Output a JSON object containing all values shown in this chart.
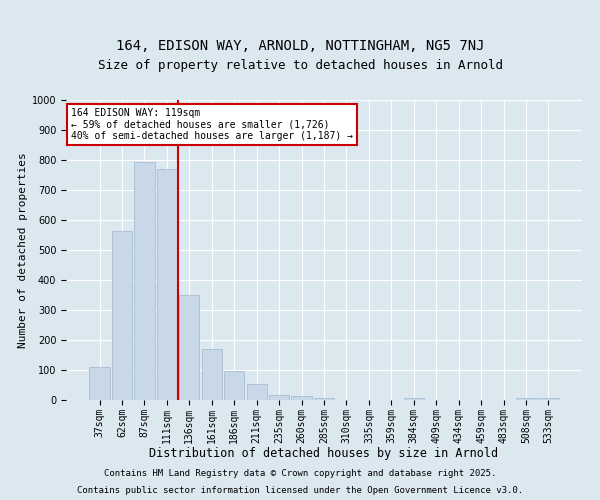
{
  "title_line1": "164, EDISON WAY, ARNOLD, NOTTINGHAM, NG5 7NJ",
  "title_line2": "Size of property relative to detached houses in Arnold",
  "xlabel": "Distribution of detached houses by size in Arnold",
  "ylabel": "Number of detached properties",
  "categories": [
    "37sqm",
    "62sqm",
    "87sqm",
    "111sqm",
    "136sqm",
    "161sqm",
    "186sqm",
    "211sqm",
    "235sqm",
    "260sqm",
    "285sqm",
    "310sqm",
    "335sqm",
    "359sqm",
    "384sqm",
    "409sqm",
    "434sqm",
    "459sqm",
    "483sqm",
    "508sqm",
    "533sqm"
  ],
  "values": [
    110,
    565,
    795,
    770,
    350,
    170,
    97,
    55,
    18,
    12,
    8,
    0,
    0,
    0,
    8,
    0,
    0,
    0,
    0,
    8,
    8
  ],
  "bar_color": "#c8d8e8",
  "bar_edge_color": "#a0b8cc",
  "vline_x_index": 3.5,
  "vline_color": "#cc0000",
  "annotation_text": "164 EDISON WAY: 119sqm\n← 59% of detached houses are smaller (1,726)\n40% of semi-detached houses are larger (1,187) →",
  "annotation_box_color": "#ffffff",
  "annotation_box_edge": "#cc0000",
  "ylim": [
    0,
    1000
  ],
  "yticks": [
    0,
    100,
    200,
    300,
    400,
    500,
    600,
    700,
    800,
    900,
    1000
  ],
  "background_color": "#dce8f0",
  "plot_bg_color": "#dce8f0",
  "footer_line1": "Contains HM Land Registry data © Crown copyright and database right 2025.",
  "footer_line2": "Contains public sector information licensed under the Open Government Licence v3.0.",
  "title_fontsize": 10,
  "subtitle_fontsize": 9,
  "tick_fontsize": 7,
  "xlabel_fontsize": 8.5,
  "ylabel_fontsize": 8,
  "footer_fontsize": 6.5,
  "annotation_fontsize": 7
}
